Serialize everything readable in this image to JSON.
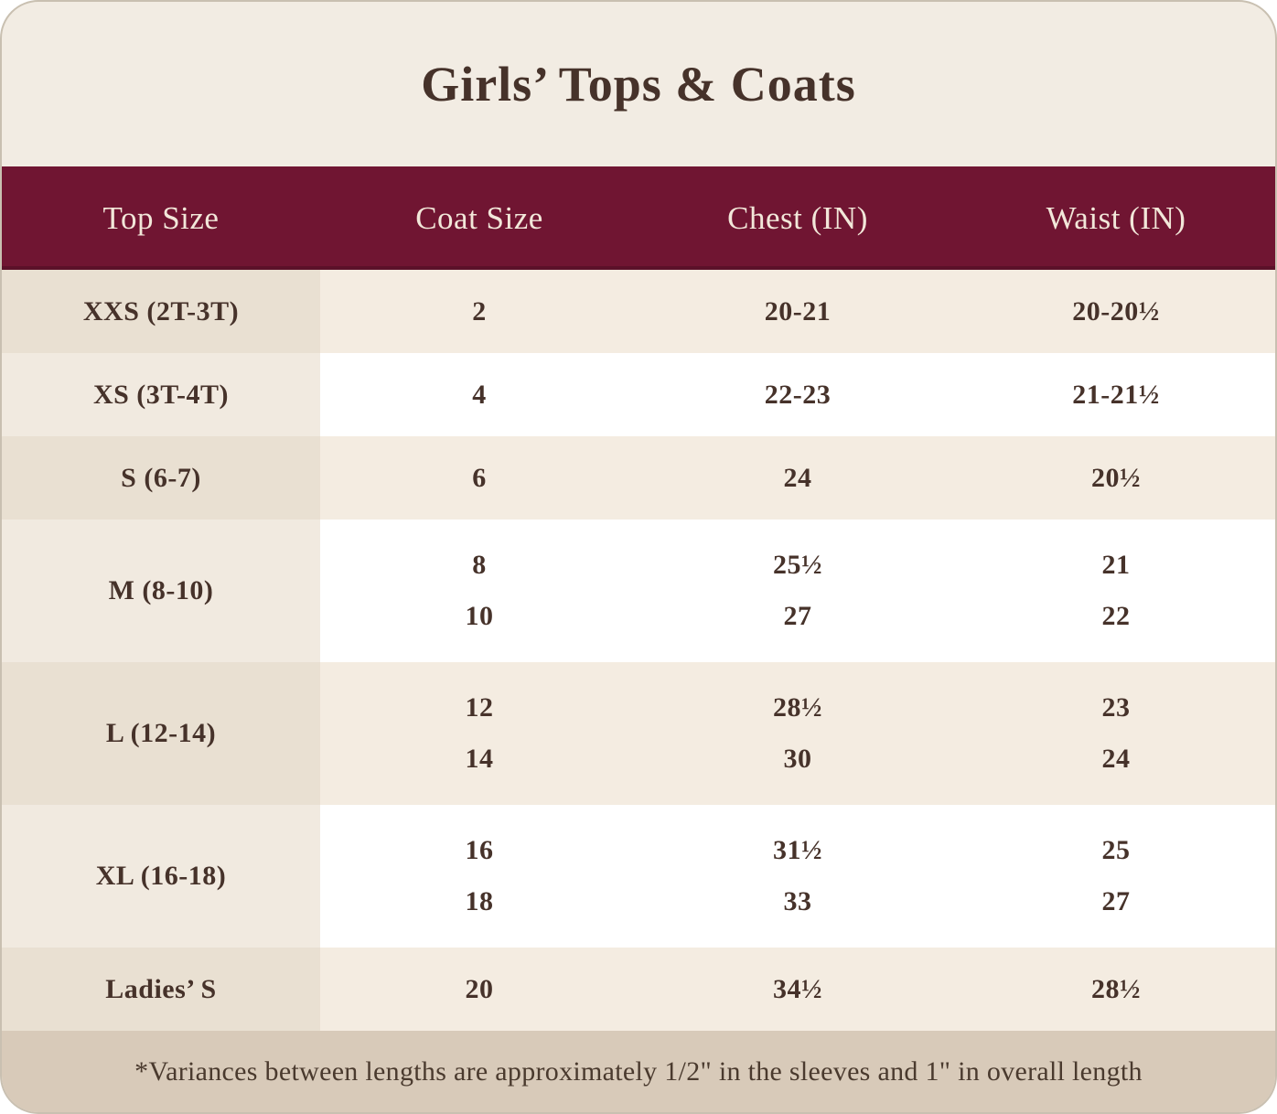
{
  "title": "Girls’ Tops & Coats",
  "table": {
    "headers": [
      "Top Size",
      "Coat Size",
      "Chest (IN)",
      "Waist (IN)"
    ],
    "rows": [
      {
        "top_size": "XXS (2T-3T)",
        "coat_size": [
          "2"
        ],
        "chest": [
          "20-21"
        ],
        "waist": [
          "20-20½"
        ],
        "shade": "beige"
      },
      {
        "top_size": "XS (3T-4T)",
        "coat_size": [
          "4"
        ],
        "chest": [
          "22-23"
        ],
        "waist": [
          "21-21½"
        ],
        "shade": "white"
      },
      {
        "top_size": "S (6-7)",
        "coat_size": [
          "6"
        ],
        "chest": [
          "24"
        ],
        "waist": [
          "20½"
        ],
        "shade": "beige"
      },
      {
        "top_size": "M (8-10)",
        "coat_size": [
          "8",
          "10"
        ],
        "chest": [
          "25½",
          "27"
        ],
        "waist": [
          "21",
          "22"
        ],
        "shade": "white"
      },
      {
        "top_size": "L (12-14)",
        "coat_size": [
          "12",
          "14"
        ],
        "chest": [
          "28½",
          "30"
        ],
        "waist": [
          "23",
          "24"
        ],
        "shade": "beige"
      },
      {
        "top_size": "XL (16-18)",
        "coat_size": [
          "16",
          "18"
        ],
        "chest": [
          "31½",
          "33"
        ],
        "waist": [
          "25",
          "27"
        ],
        "shade": "white"
      },
      {
        "top_size": "Ladies’ S",
        "coat_size": [
          "20"
        ],
        "chest": [
          "34½"
        ],
        "waist": [
          "28½"
        ],
        "shade": "beige"
      }
    ]
  },
  "footnote": "*Variances between lengths are approximately 1/2\" in the sleeves and 1\" in overall length",
  "colors": {
    "header_bg": "#701532",
    "header_text": "#f2e7d9",
    "card_bg": "#f2ece3",
    "beige_row": "#f4ece1",
    "beige_row_first_col": "#e9e0d2",
    "white_row": "#ffffff",
    "white_row_first_col": "#f1eae0",
    "footer_bg": "#d8cab9",
    "text": "#46322a",
    "card_border": "#c9c0b1"
  },
  "chart_data": {
    "type": "table",
    "title": "Girls’ Tops & Coats",
    "columns": [
      "Top Size",
      "Coat Size",
      "Chest (IN)",
      "Waist (IN)"
    ],
    "rows": [
      [
        "XXS (2T-3T)",
        "2",
        "20-21",
        "20-20½"
      ],
      [
        "XS (3T-4T)",
        "4",
        "22-23",
        "21-21½"
      ],
      [
        "S (6-7)",
        "6",
        "24",
        "20½"
      ],
      [
        "M (8-10)",
        "8",
        "25½",
        "21"
      ],
      [
        "M (8-10)",
        "10",
        "27",
        "22"
      ],
      [
        "L (12-14)",
        "12",
        "28½",
        "23"
      ],
      [
        "L (12-14)",
        "14",
        "30",
        "24"
      ],
      [
        "XL (16-18)",
        "16",
        "31½",
        "25"
      ],
      [
        "XL (16-18)",
        "18",
        "33",
        "27"
      ],
      [
        "Ladies’ S",
        "20",
        "34½",
        "28½"
      ]
    ],
    "footnote": "*Variances between lengths are approximately 1/2\" in the sleeves and 1\" in overall length"
  }
}
